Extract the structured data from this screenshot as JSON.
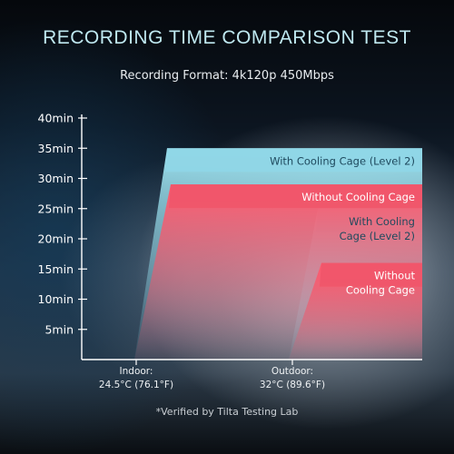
{
  "title": "RECORDING TIME COMPARISON TEST",
  "subtitle": "Recording Format: 4k120p 450Mbps",
  "footnote": "*Verified by Tilta Testing Lab",
  "colors": {
    "with_cage": "#8fd6e6",
    "without_cage": "#f0566a"
  },
  "chart_data": {
    "type": "area",
    "title": "RECORDING TIME COMPARISON TEST",
    "subtitle": "Recording Format: 4k120p 450Mbps",
    "ylim": [
      0,
      40
    ],
    "y_ticks": [
      "5min",
      "10min",
      "15min",
      "20min",
      "25min",
      "30min",
      "35min",
      "40min"
    ],
    "y_tick_values": [
      5,
      10,
      15,
      20,
      25,
      30,
      35,
      40
    ],
    "categories": [
      {
        "line1": "Indoor:",
        "line2": "24.5°C (76.1°F)"
      },
      {
        "line1": "Outdoor:",
        "line2": "32°C (89.6°F)"
      }
    ],
    "series": [
      {
        "name": "With Cooling Cage (Level 2)",
        "color": "#8fd6e6",
        "values": [
          35,
          25
        ],
        "labels": [
          [
            "With Cooling Cage (Level 2)"
          ],
          [
            "With Cooling",
            "Cage (Level 2)"
          ]
        ]
      },
      {
        "name": "Without Cooling Cage",
        "color": "#f0566a",
        "values": [
          29,
          16
        ],
        "labels": [
          [
            "Without Cooling Cage"
          ],
          [
            "Without",
            "Cooling Cage"
          ]
        ]
      }
    ]
  }
}
